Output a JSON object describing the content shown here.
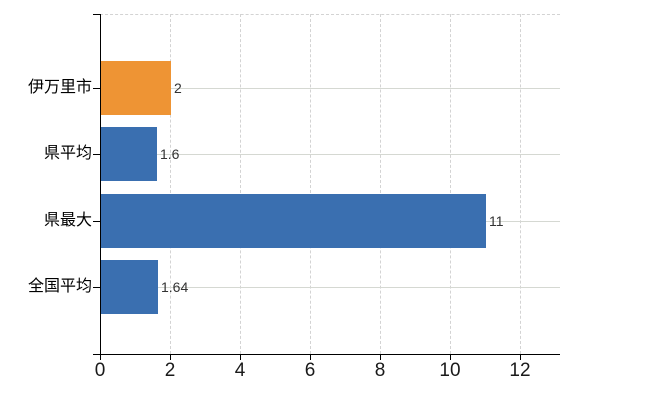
{
  "chart_data": {
    "type": "bar",
    "orientation": "horizontal",
    "title": "",
    "categories": [
      "伊万里市",
      "県平均",
      "県最大",
      "全国平均"
    ],
    "series": [
      {
        "name": "",
        "values": [
          2,
          1.6,
          11,
          1.64
        ]
      }
    ],
    "value_labels": [
      "2",
      "1.6",
      "11",
      "1.64"
    ],
    "bar_colors": [
      "#ee9434",
      "#3a6fb0",
      "#3a6fb0",
      "#3a6fb0"
    ],
    "x_ticks": [
      0,
      2,
      4,
      6,
      8,
      10,
      12
    ],
    "x_tick_labels": [
      "0",
      "2",
      "4",
      "6",
      "8",
      "10",
      "12"
    ],
    "xlim": [
      0,
      13.14
    ],
    "xlabel": "",
    "ylabel": "",
    "legend": false,
    "grid": {
      "horizontal": "solid",
      "vertical": "dashed",
      "top_border": "dashed"
    },
    "colors": {
      "highlight_bar": "#ee9434",
      "default_bar": "#3a6fb0",
      "grid_solid": "#d5d8d2",
      "grid_dashed": "#d3d3d3",
      "axis": "#000000",
      "tick_label": "#1a1a1a",
      "value_label": "#333333",
      "category_label": "#000000",
      "background": "#ffffff"
    }
  }
}
